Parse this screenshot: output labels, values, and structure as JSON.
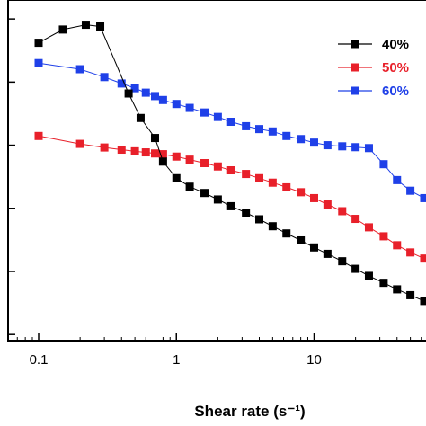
{
  "chart_data": {
    "type": "line",
    "xlabel": "Shear rate (s⁻¹)",
    "x_scale": "log",
    "y_scale": "log",
    "xlim": [
      0.06,
      70
    ],
    "ylim": [
      0.008,
      2000
    ],
    "x_ticks": [
      {
        "value": 0.1,
        "label": "0.1"
      },
      {
        "value": 1,
        "label": "1"
      },
      {
        "value": 10,
        "label": "10"
      }
    ],
    "y_ticks": [
      0.01,
      0.1,
      1,
      10,
      100,
      1000
    ],
    "legend_position": "top-right",
    "series": [
      {
        "name": "40%",
        "color": "#000000",
        "x": [
          0.1,
          0.15,
          0.22,
          0.28,
          0.45,
          0.55,
          0.7,
          0.8,
          1.0,
          1.25,
          1.6,
          2.0,
          2.5,
          3.2,
          4.0,
          5.0,
          6.3,
          8.0,
          10,
          12.5,
          16,
          20,
          25,
          32,
          40,
          50,
          63
        ],
        "y": [
          420,
          680,
          810,
          760,
          66,
          27,
          13,
          5.5,
          3.0,
          2.2,
          1.75,
          1.38,
          1.08,
          0.85,
          0.67,
          0.52,
          0.4,
          0.31,
          0.24,
          0.19,
          0.145,
          0.11,
          0.085,
          0.066,
          0.052,
          0.042,
          0.034
        ]
      },
      {
        "name": "50%",
        "color": "#e8202a",
        "x": [
          0.1,
          0.2,
          0.3,
          0.4,
          0.5,
          0.6,
          0.7,
          0.8,
          1.0,
          1.25,
          1.6,
          2.0,
          2.5,
          3.2,
          4.0,
          5.0,
          6.3,
          8.0,
          10,
          12.5,
          16,
          20,
          25,
          32,
          40,
          50,
          63
        ],
        "y": [
          14,
          10.5,
          9.2,
          8.5,
          8.0,
          7.7,
          7.4,
          7.2,
          6.6,
          5.9,
          5.2,
          4.6,
          4.0,
          3.5,
          3.0,
          2.55,
          2.15,
          1.8,
          1.45,
          1.15,
          0.9,
          0.68,
          0.5,
          0.36,
          0.26,
          0.2,
          0.16
        ]
      },
      {
        "name": "60%",
        "color": "#1f40e8",
        "x": [
          0.1,
          0.2,
          0.3,
          0.4,
          0.5,
          0.6,
          0.7,
          0.8,
          1.0,
          1.25,
          1.6,
          2.0,
          2.5,
          3.2,
          4.0,
          5.0,
          6.3,
          8.0,
          10,
          12.5,
          16,
          20,
          25,
          32,
          40,
          50,
          63
        ],
        "y": [
          200,
          160,
          120,
          95,
          80,
          68,
          60,
          52,
          45,
          39,
          33,
          28,
          23.5,
          20,
          18,
          16.5,
          14,
          12.5,
          11,
          10,
          9.6,
          9.3,
          9.0,
          5.0,
          2.8,
          1.9,
          1.45
        ]
      }
    ]
  }
}
